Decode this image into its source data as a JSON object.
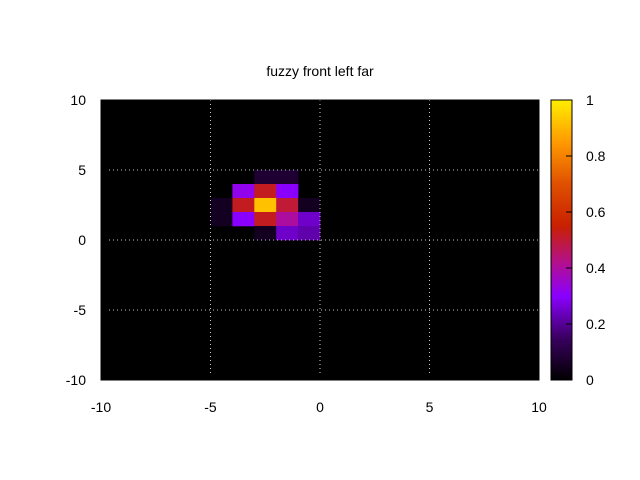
{
  "chart_data": {
    "type": "heatmap",
    "title": "fuzzy front left far",
    "xlabel": "",
    "ylabel": "",
    "xlim": [
      -10,
      10
    ],
    "ylim": [
      -10,
      10
    ],
    "x_ticks": [
      "-10",
      "-5",
      "0",
      "5",
      "10"
    ],
    "y_ticks": [
      "10",
      "5",
      "0",
      "-5",
      "-10"
    ],
    "grid": true,
    "cell_size": 1,
    "colorbar": {
      "range": [
        0,
        1
      ],
      "ticks": [
        "1",
        "0.8",
        "0.6",
        "0.4",
        "0.2",
        "0"
      ],
      "palette": "black-purple-red-orange-yellow",
      "colors": [
        "#000000",
        "#4b0070",
        "#8a00ff",
        "#c0208a",
        "#d02800",
        "#f07000",
        "#ffd000",
        "#ffff00"
      ]
    },
    "cells": [
      {
        "x": -3,
        "y": 4,
        "value": 0.08
      },
      {
        "x": -2,
        "y": 4,
        "value": 0.08
      },
      {
        "x": -4,
        "y": 3,
        "value": 0.32
      },
      {
        "x": -3,
        "y": 3,
        "value": 0.52
      },
      {
        "x": -2,
        "y": 3,
        "value": 0.3
      },
      {
        "x": -5,
        "y": 2,
        "value": 0.05
      },
      {
        "x": -4,
        "y": 2,
        "value": 0.52
      },
      {
        "x": -3,
        "y": 2,
        "value": 0.92
      },
      {
        "x": -2,
        "y": 2,
        "value": 0.5
      },
      {
        "x": -1,
        "y": 2,
        "value": 0.05
      },
      {
        "x": -5,
        "y": 1,
        "value": 0.05
      },
      {
        "x": -4,
        "y": 1,
        "value": 0.3
      },
      {
        "x": -3,
        "y": 1,
        "value": 0.52
      },
      {
        "x": -2,
        "y": 1,
        "value": 0.4
      },
      {
        "x": -1,
        "y": 1,
        "value": 0.25
      },
      {
        "x": -3,
        "y": 0,
        "value": 0.05
      },
      {
        "x": -2,
        "y": 0,
        "value": 0.25
      },
      {
        "x": -1,
        "y": 0,
        "value": 0.22
      }
    ]
  }
}
